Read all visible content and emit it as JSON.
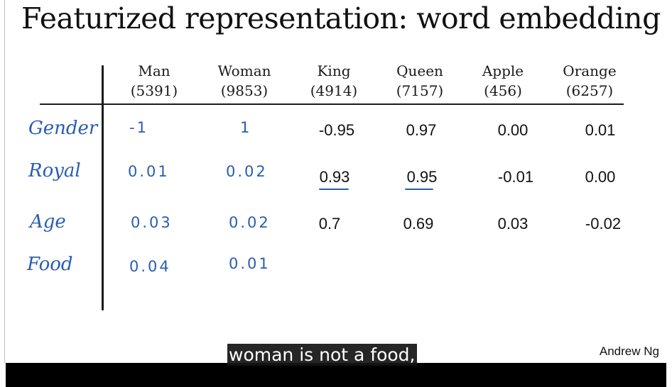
{
  "slide": {
    "title": "Featurized representation: word embedding",
    "author": "Andrew Ng"
  },
  "columns": [
    {
      "word": "Man",
      "index": "(5391)"
    },
    {
      "word": "Woman",
      "index": "(9853)"
    },
    {
      "word": "King",
      "index": "(4914)"
    },
    {
      "word": "Queen",
      "index": "(7157)"
    },
    {
      "word": "Apple",
      "index": "(456)"
    },
    {
      "word": "Orange",
      "index": "(6257)"
    }
  ],
  "rows": [
    {
      "label": "Gender",
      "values": [
        "-1",
        "1",
        "-0.95",
        "0.97",
        "0.00",
        "0.01"
      ]
    },
    {
      "label": "Royal",
      "values": [
        "0.01",
        "0.02",
        "0.93",
        "0.95",
        "-0.01",
        "0.00"
      ]
    },
    {
      "label": "Age",
      "values": [
        "0.03",
        "0.02",
        "0.7",
        "0.69",
        "0.03",
        "-0.02"
      ]
    },
    {
      "label": "Food",
      "values": [
        "0.04",
        "0.01",
        "",
        "",
        "",
        ""
      ]
    }
  ],
  "subtitle": {
    "text": "woman is not a food,"
  },
  "colors": {
    "ink": "#111111",
    "handwriting": "#2a5db0",
    "caption_bg": "#141414"
  }
}
